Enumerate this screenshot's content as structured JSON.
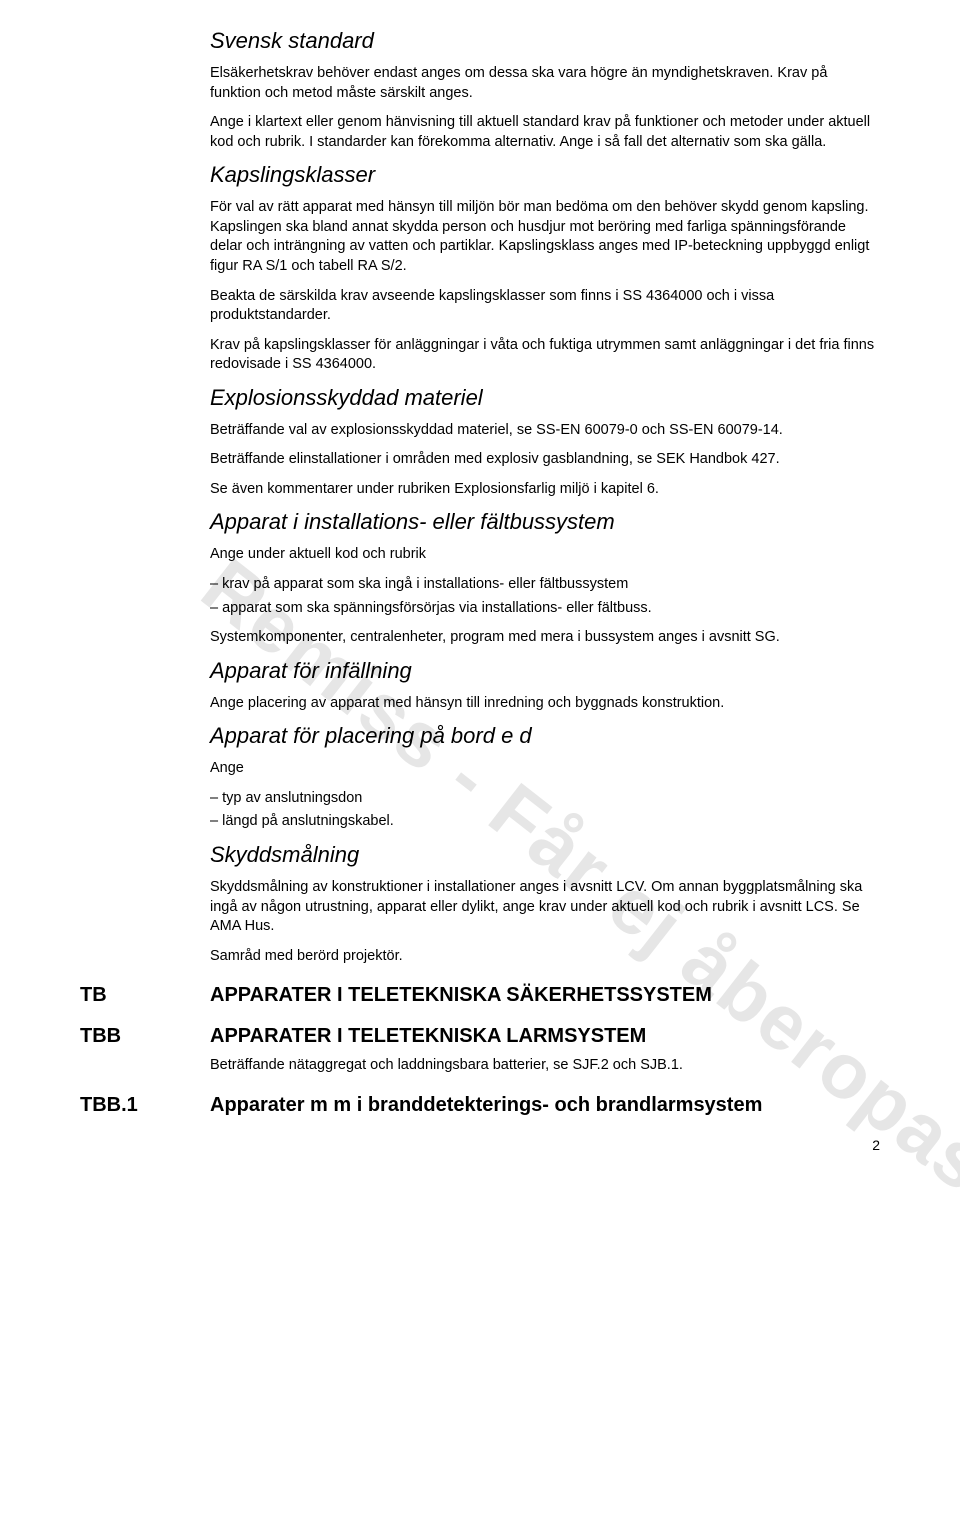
{
  "watermark": "Remiss - Får ej åberopas",
  "svensk_standard": {
    "heading": "Svensk standard",
    "p1": "Elsäkerhetskrav behöver endast anges om dessa ska vara högre än myndighetskraven. Krav på funktion och metod måste särskilt anges.",
    "p2": "Ange i klartext eller genom hänvisning till aktuell standard krav på funktioner och metoder under aktuell kod och rubrik. I standarder kan förekomma alternativ. Ange i så fall det alternativ som ska gälla."
  },
  "kapslingsklasser": {
    "heading": "Kapslingsklasser",
    "p1": "För val av rätt apparat med hänsyn till miljön bör man bedöma om den behöver skydd genom kapsling. Kapslingen ska bland annat skydda person och husdjur mot beröring med farliga spänningsförande delar och inträngning av vatten och partiklar. Kapslingsklass anges med IP-beteckning uppbyggd enligt figur RA S/1 och tabell RA S/2.",
    "p2": "Beakta de särskilda krav avseende kapslingsklasser som finns i SS 4364000 och i vissa produktstandarder.",
    "p3": "Krav på kapslingsklasser för anläggningar i våta och fuktiga utrymmen samt anläggningar i det fria finns redovisade i SS 4364000."
  },
  "explosion": {
    "heading": "Explosionsskyddad materiel",
    "p1": "Beträffande val av explosionsskyddad materiel, se SS-EN 60079-0 och SS-EN 60079-14.",
    "p2": "Beträffande elinstallationer i områden med explosiv gasblandning, se SEK Handbok 427.",
    "p3": "Se även kommentarer under rubriken Explosionsfarlig miljö i kapitel 6."
  },
  "apparat_install": {
    "heading": "Apparat i installations- eller fältbussystem",
    "p1": "Ange under aktuell kod och rubrik",
    "items": [
      "krav på apparat som ska ingå i installations- eller fältbussystem",
      "apparat som ska spänningsförsörjas via installations- eller fältbuss."
    ],
    "p2": "Systemkomponenter, centralenheter, program med mera i bussystem anges i avsnitt SG."
  },
  "apparat_infallning": {
    "heading": "Apparat för infällning",
    "p1": "Ange placering av apparat med hänsyn till inredning och byggnads konstruktion."
  },
  "apparat_bord": {
    "heading": "Apparat för placering på bord e d",
    "p1": "Ange",
    "items": [
      "typ av anslutningsdon",
      "längd på anslutningskabel."
    ]
  },
  "skyddsmalning": {
    "heading": "Skyddsmålning",
    "p1": "Skyddsmålning av konstruktioner i installationer anges i avsnitt LCV. Om annan byggplatsmålning ska ingå av någon utrustning, apparat eller dylikt, ange krav under aktuell kod och rubrik i avsnitt LCS. Se AMA Hus.",
    "p2": "Samråd med berörd projektör."
  },
  "tb": {
    "code": "TB",
    "title": "APPARATER I TELETEKNISKA SÄKERHETSSYSTEM"
  },
  "tbb": {
    "code": "TBB",
    "title": "APPARATER I TELETEKNISKA LARMSYSTEM",
    "sub": "Beträffande nätaggregat och laddningsbara batterier, se SJF.2 och SJB.1."
  },
  "tbb1": {
    "code": "TBB.1",
    "title": "Apparater m m i branddetekterings- och brandlarmsystem"
  },
  "pagenum": "2"
}
